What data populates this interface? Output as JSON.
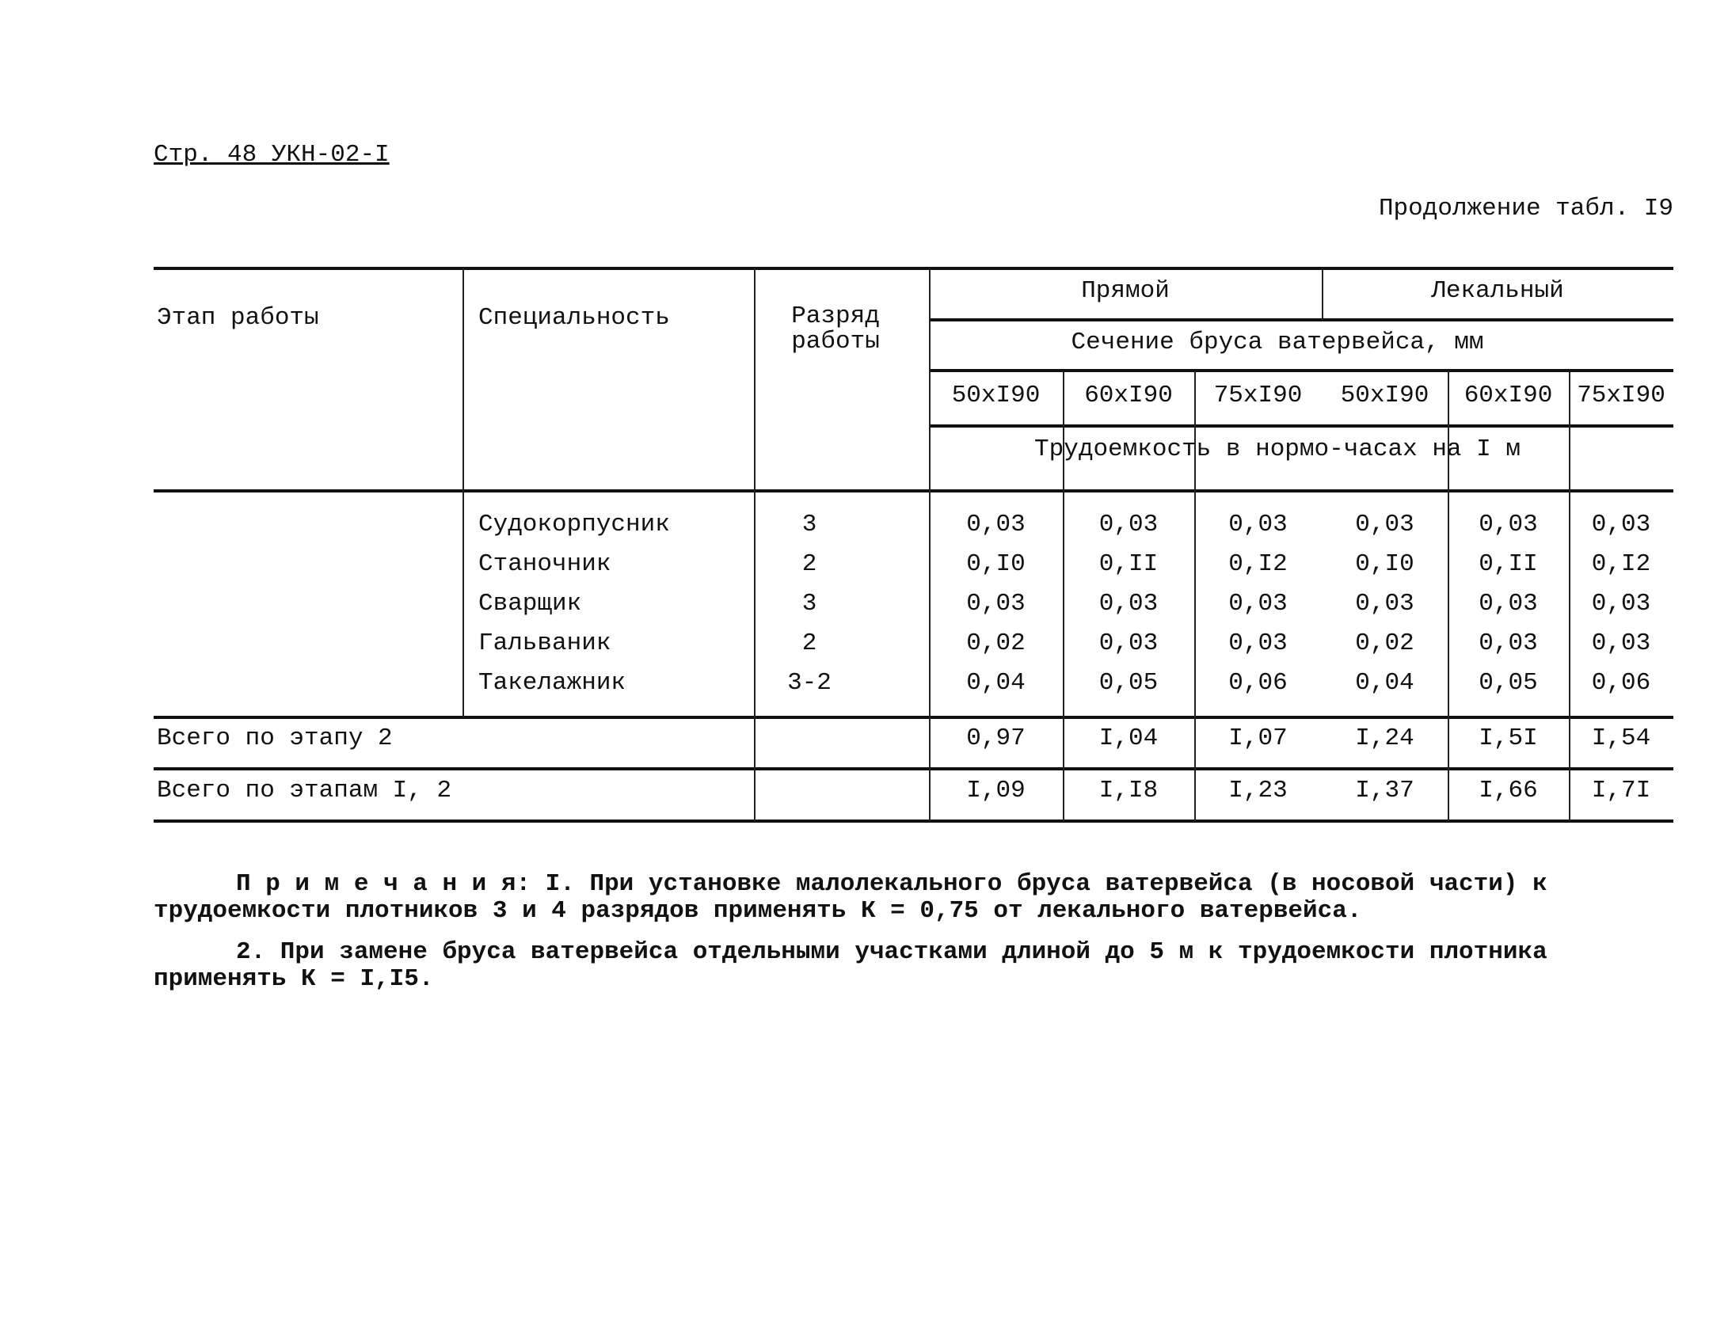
{
  "header": {
    "page_ref": "Стр. 48 УКН-02-I",
    "continuation": "Продолжение табл. I9"
  },
  "table": {
    "col_stage": "Этап работы",
    "col_specialty": "Специальность",
    "col_grade": "Разряд работы",
    "group_straight": "Прямой",
    "group_curved": "Лекальный",
    "section_label": "Сечение бруса ватервейса, мм",
    "sections": [
      "50xI90",
      "60xI90",
      "75xI90",
      "50xI90",
      "60xI90",
      "75xI90"
    ],
    "labor_label": "Трудоемкость в нормо-часах на I м",
    "rows": [
      {
        "specialty": "Судокорпусник",
        "grade": "3",
        "values": [
          "0,03",
          "0,03",
          "0,03",
          "0,03",
          "0,03",
          "0,03"
        ]
      },
      {
        "specialty": "Станочник",
        "grade": "2",
        "values": [
          "0,I0",
          "0,II",
          "0,I2",
          "0,I0",
          "0,II",
          "0,I2"
        ]
      },
      {
        "specialty": "Сварщик",
        "grade": "3",
        "values": [
          "0,03",
          "0,03",
          "0,03",
          "0,03",
          "0,03",
          "0,03"
        ]
      },
      {
        "specialty": "Гальваник",
        "grade": "2",
        "values": [
          "0,02",
          "0,03",
          "0,03",
          "0,02",
          "0,03",
          "0,03"
        ]
      },
      {
        "specialty": "Такелажник",
        "grade": "3-2",
        "values": [
          "0,04",
          "0,05",
          "0,06",
          "0,04",
          "0,05",
          "0,06"
        ]
      }
    ],
    "totals": [
      {
        "label": "Всего по этапу 2",
        "values": [
          "0,97",
          "I,04",
          "I,07",
          "I,24",
          "I,5I",
          "I,54"
        ]
      },
      {
        "label": "Всего по этапам I, 2",
        "values": [
          "I,09",
          "I,I8",
          "I,23",
          "I,37",
          "I,66",
          "I,7I"
        ]
      }
    ]
  },
  "notes": [
    "П р и м е ч а н и я: I. При установке малолекального бруса ватервейса (в носовой части) к трудоемкости плотников 3 и 4 разрядов применять К = 0,75 от лекального ватервейса.",
    "2. При замене бруса ватервейса отдельными участками длиной до 5 м к трудоемкости плотника применять К = I,I5."
  ]
}
